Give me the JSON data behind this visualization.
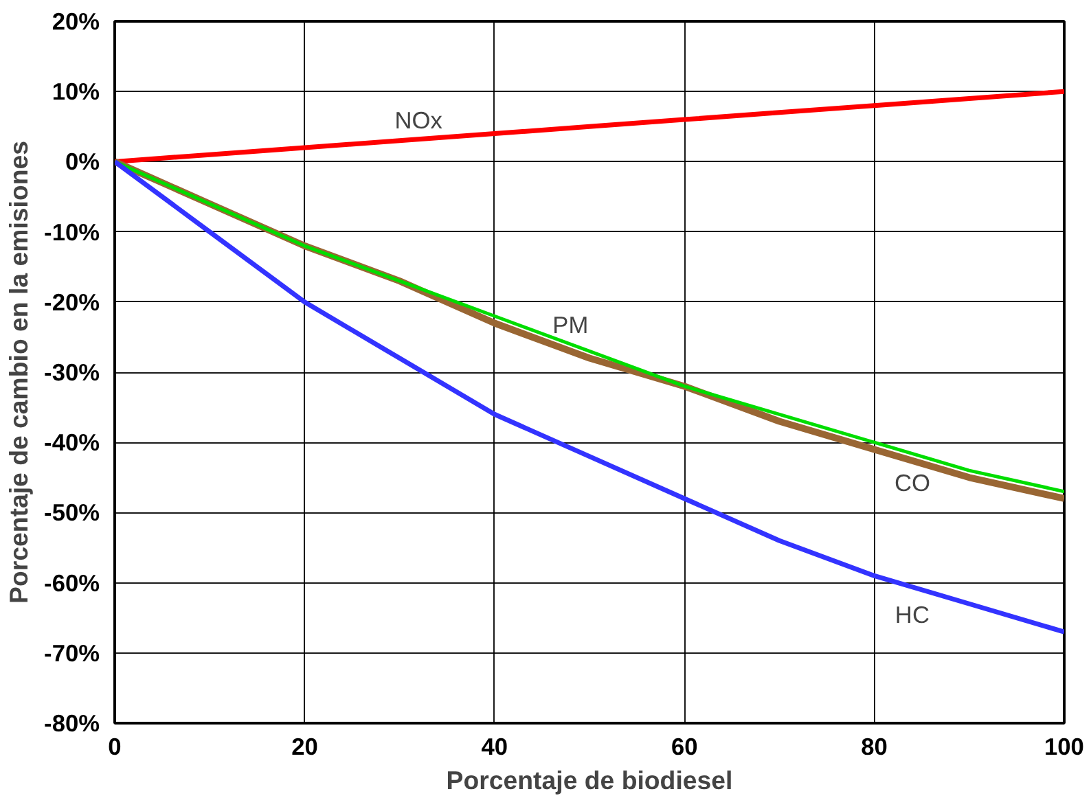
{
  "chart_data": {
    "type": "line",
    "xlabel": "Porcentaje de biodiesel",
    "ylabel": "Porcentaje de cambio en la emisiones",
    "x": [
      0,
      10,
      20,
      30,
      40,
      50,
      60,
      70,
      80,
      90,
      100
    ],
    "series": [
      {
        "name": "NOx",
        "color": "#ff0000",
        "values": [
          0,
          1,
          2,
          3,
          4,
          5,
          6,
          7,
          8,
          9,
          10
        ]
      },
      {
        "name": "CO",
        "color": "#996633",
        "values": [
          0,
          -6,
          -12,
          -17,
          -23,
          -28,
          -32,
          -37,
          -41,
          -45,
          -48
        ]
      },
      {
        "name": "PM",
        "color": "#00dd00",
        "values": [
          0,
          -6,
          -12,
          -17,
          -22,
          -27,
          -32,
          -36,
          -40,
          -44,
          -47
        ]
      },
      {
        "name": "HC",
        "color": "#3333ff",
        "values": [
          0,
          -10,
          -20,
          -28,
          -36,
          -42,
          -48,
          -54,
          -59,
          -63,
          -67
        ]
      }
    ],
    "xlim": [
      0,
      100
    ],
    "xticks": [
      0,
      20,
      40,
      60,
      80,
      100
    ],
    "ylim": [
      -80,
      20
    ],
    "yticks": [
      {
        "value": -80,
        "label": "-80%"
      },
      {
        "value": -70,
        "label": "-70%"
      },
      {
        "value": -60,
        "label": "-60%"
      },
      {
        "value": -50,
        "label": "-50%"
      },
      {
        "value": -40,
        "label": "-40%"
      },
      {
        "value": -30,
        "label": "-30%"
      },
      {
        "value": -20,
        "label": "-20%"
      },
      {
        "value": -10,
        "label": "-10%"
      },
      {
        "value": 0,
        "label": "0%"
      },
      {
        "value": 10,
        "label": "10%"
      },
      {
        "value": 20,
        "label": "20%"
      }
    ],
    "grid": true,
    "marker": "none",
    "line_style": "solid"
  }
}
